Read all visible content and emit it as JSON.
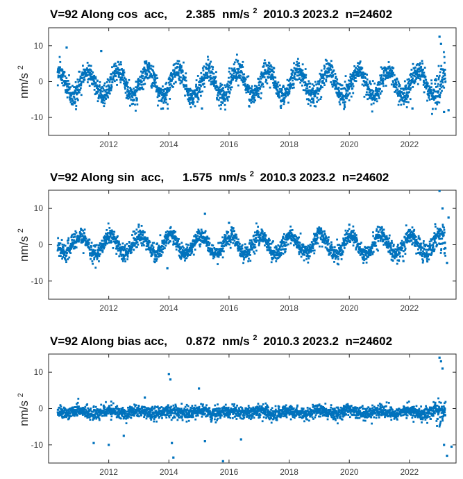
{
  "figure": {
    "common": {
      "satellite_label": "V=92",
      "direction": "Along",
      "unit_base": "nm/s",
      "unit_exponent": "2",
      "start": "2010.3",
      "end": "2023.2",
      "count_label": "n=24602",
      "ylabel_base": "nm/s",
      "ylabel_exponent": "2"
    },
    "marker_color": "#0072BD"
  },
  "chart_data": [
    {
      "type": "scatter",
      "component": "cos",
      "title_prefix": "V=92 Along cos  acc,",
      "rms_value": "2.385",
      "title_units": "nm/s",
      "title_units_exponent": "2",
      "title_suffix": "2010.3 2023.2  n=24602",
      "xlim": [
        2010.0,
        2023.55
      ],
      "ylim": [
        -15,
        15
      ],
      "xticks": [
        2012,
        2014,
        2016,
        2018,
        2020,
        2022
      ],
      "yticks": [
        -10,
        0,
        10
      ],
      "ylabel": "nm/s",
      "ylabel_exponent": "2",
      "series": [
        {
          "color": "#0072BD",
          "model": {
            "t0": 2010.3,
            "t1": 2023.2,
            "annual_amplitude": 3.5,
            "annual_phase": 0.3,
            "offset": -0.5,
            "noise": 1.6
          },
          "outliers": [
            [
              2010.6,
              9.5
            ],
            [
              2011.75,
              8.5
            ],
            [
              2013.2,
              5.5
            ],
            [
              2013.8,
              -7.5
            ],
            [
              2015.1,
              -7.5
            ],
            [
              2022.1,
              -7.5
            ],
            [
              2023.0,
              12.5
            ],
            [
              2023.05,
              10.5
            ],
            [
              2023.15,
              -8.5
            ],
            [
              2023.3,
              -8.0
            ]
          ]
        }
      ]
    },
    {
      "type": "scatter",
      "component": "sin",
      "title_prefix": "V=92 Along sin  acc,",
      "rms_value": "1.575",
      "title_units": "nm/s",
      "title_units_exponent": "2",
      "title_suffix": "2010.3 2023.2  n=24602",
      "xlim": [
        2010.0,
        2023.55
      ],
      "ylim": [
        -15,
        15
      ],
      "xticks": [
        2012,
        2014,
        2016,
        2018,
        2020,
        2022
      ],
      "yticks": [
        -10,
        0,
        10
      ],
      "ylabel": "nm/s",
      "ylabel_exponent": "2",
      "series": [
        {
          "color": "#0072BD",
          "model": {
            "t0": 2010.3,
            "t1": 2023.2,
            "annual_amplitude": 2.5,
            "annual_phase": 0.05,
            "offset": 0.0,
            "noise": 1.2
          },
          "outliers": [
            [
              2013.0,
              5.5
            ],
            [
              2013.95,
              -6.5
            ],
            [
              2015.2,
              8.5
            ],
            [
              2016.0,
              6.0
            ],
            [
              2020.0,
              5.5
            ],
            [
              2021.8,
              -4.5
            ],
            [
              2023.0,
              14.8
            ],
            [
              2023.1,
              10.0
            ],
            [
              2023.3,
              7.5
            ],
            [
              2023.25,
              -5.0
            ]
          ]
        }
      ]
    },
    {
      "type": "scatter",
      "component": "bias",
      "title_prefix": "V=92 Along bias acc,",
      "rms_value": "0.872",
      "title_units": "nm/s",
      "title_units_exponent": "2",
      "title_suffix": "2010.3 2023.2  n=24602",
      "xlim": [
        2010.0,
        2023.55
      ],
      "ylim": [
        -15,
        15
      ],
      "xticks": [
        2012,
        2014,
        2016,
        2018,
        2020,
        2022
      ],
      "yticks": [
        -10,
        0,
        10
      ],
      "ylabel": "nm/s",
      "ylabel_exponent": "2",
      "series": [
        {
          "color": "#0072BD",
          "model": {
            "t0": 2010.3,
            "t1": 2023.2,
            "annual_amplitude": 0.4,
            "annual_phase": 0.0,
            "offset": -1.0,
            "noise": 0.9
          },
          "outliers": [
            [
              2011.5,
              -9.5
            ],
            [
              2012.0,
              -10.0
            ],
            [
              2012.5,
              -7.5
            ],
            [
              2013.2,
              3.0
            ],
            [
              2014.0,
              9.5
            ],
            [
              2014.05,
              8.0
            ],
            [
              2014.1,
              -9.5
            ],
            [
              2014.15,
              -13.5
            ],
            [
              2015.0,
              5.5
            ],
            [
              2015.2,
              -9.0
            ],
            [
              2015.8,
              -14.5
            ],
            [
              2016.4,
              -8.5
            ],
            [
              2023.0,
              14.0
            ],
            [
              2023.05,
              13.0
            ],
            [
              2023.1,
              11.0
            ],
            [
              2023.15,
              -10.0
            ],
            [
              2023.25,
              -13.0
            ],
            [
              2023.4,
              -10.5
            ]
          ]
        }
      ]
    }
  ]
}
